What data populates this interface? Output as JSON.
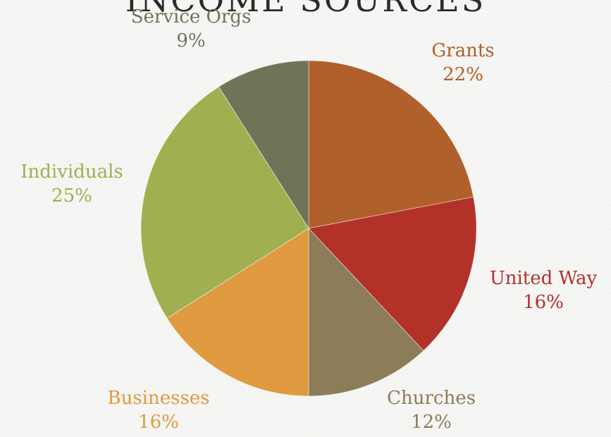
{
  "chart_data": {
    "type": "pie",
    "title": "INCOME SOURCES",
    "slices": [
      {
        "label": "Grants",
        "value": 22,
        "pct_label": "22%",
        "color": "#b0602a"
      },
      {
        "label": "United Way",
        "value": 16,
        "pct_label": "16%",
        "color": "#b2322a"
      },
      {
        "label": "Churches",
        "value": 12,
        "pct_label": "12%",
        "color": "#8c7c58"
      },
      {
        "label": "Businesses",
        "value": 16,
        "pct_label": "16%",
        "color": "#e09a40"
      },
      {
        "label": "Individuals",
        "value": 25,
        "pct_label": "25%",
        "color": "#a0b050"
      },
      {
        "label": "Service Orgs",
        "value": 9,
        "pct_label": "9%",
        "color": "#6e7458"
      }
    ]
  }
}
